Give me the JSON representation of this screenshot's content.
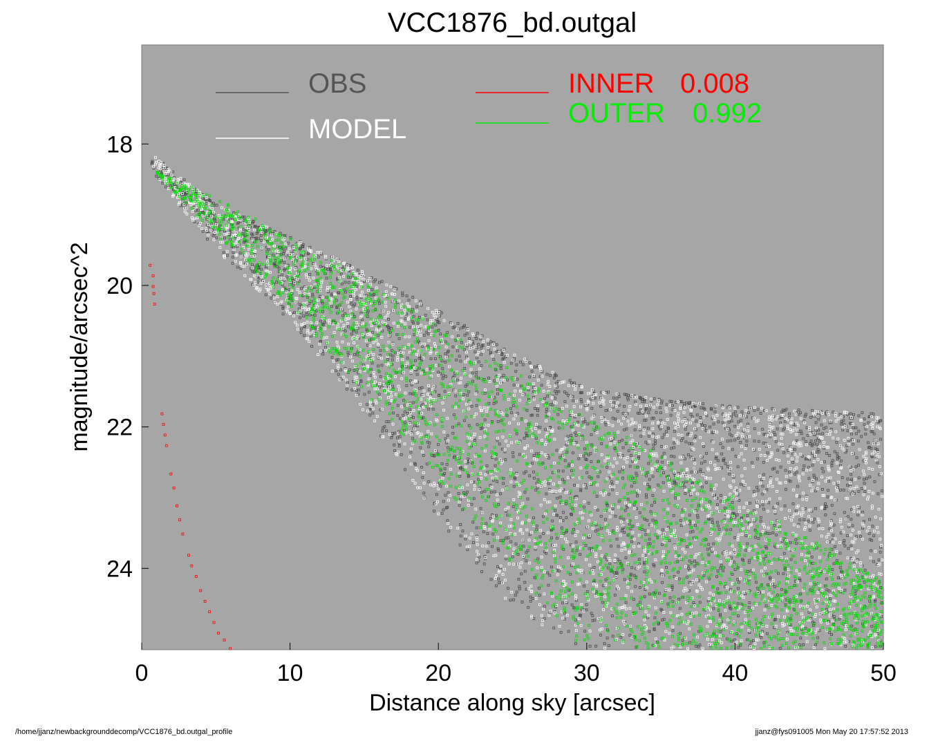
{
  "chart_data": {
    "type": "scatter",
    "title": "VCC1876_bd.outgal",
    "xlabel": "Distance along sky [arcsec]",
    "ylabel": "magnitude/arcsec^2",
    "xlim": [
      0,
      50
    ],
    "ylim": [
      25.15,
      16.6
    ],
    "y_inverted": true,
    "xticks": [
      0,
      10,
      20,
      30,
      40,
      50
    ],
    "yticks": [
      18,
      20,
      22,
      24
    ],
    "plot_background": "#a6a6a6",
    "grid": false,
    "legend": [
      {
        "name": "OBS",
        "color": "#555555"
      },
      {
        "name": "MODEL",
        "color": "#ffffff"
      },
      {
        "name": "INNER",
        "value": "0.008",
        "color": "#ff0000"
      },
      {
        "name": "OUTER",
        "value": "0.992",
        "color": "#00ee00"
      }
    ],
    "series": [
      {
        "name": "OBS",
        "color": "#555555",
        "note_points": "dense scatter",
        "upper_envelope": [
          [
            0.7,
            18.15
          ],
          [
            5,
            18.85
          ],
          [
            10,
            19.3
          ],
          [
            15,
            19.8
          ],
          [
            20,
            20.35
          ],
          [
            25,
            20.95
          ],
          [
            30,
            21.45
          ],
          [
            35,
            21.6
          ],
          [
            40,
            21.7
          ],
          [
            45,
            21.75
          ],
          [
            50,
            21.8
          ]
        ],
        "lower_envelope": [
          [
            0.7,
            18.4
          ],
          [
            5,
            19.5
          ],
          [
            10,
            20.5
          ],
          [
            15,
            21.8
          ],
          [
            20,
            23.3
          ],
          [
            25,
            24.6
          ],
          [
            30,
            25.15
          ],
          [
            40,
            25.15
          ],
          [
            50,
            25.15
          ]
        ]
      },
      {
        "name": "OUTER",
        "color": "#00ee00",
        "upper_curve": [
          [
            0.7,
            18.35
          ],
          [
            5,
            18.75
          ],
          [
            10,
            19.3
          ],
          [
            15,
            19.9
          ],
          [
            20,
            20.55
          ],
          [
            25,
            21.2
          ],
          [
            30,
            21.8
          ],
          [
            35,
            22.4
          ],
          [
            40,
            23.0
          ],
          [
            45,
            23.55
          ],
          [
            50,
            24.15
          ]
        ],
        "lower_curve": [
          [
            0.7,
            18.35
          ],
          [
            5,
            19.3
          ],
          [
            10,
            20.3
          ],
          [
            15,
            21.5
          ],
          [
            20,
            22.75
          ],
          [
            25,
            24.0
          ],
          [
            29.8,
            25.15
          ]
        ]
      },
      {
        "name": "INNER",
        "color": "#ff0000",
        "points": [
          [
            0.5,
            19.7
          ],
          [
            0.7,
            19.85
          ],
          [
            0.7,
            20.0
          ],
          [
            0.75,
            20.1
          ],
          [
            0.8,
            20.25
          ],
          [
            1.3,
            21.8
          ],
          [
            1.4,
            21.95
          ],
          [
            1.5,
            22.1
          ],
          [
            1.6,
            22.25
          ],
          [
            1.9,
            22.65
          ],
          [
            2.1,
            22.85
          ],
          [
            2.3,
            23.1
          ],
          [
            2.5,
            23.3
          ],
          [
            2.7,
            23.5
          ],
          [
            3.1,
            23.8
          ],
          [
            3.3,
            23.95
          ],
          [
            3.6,
            24.1
          ],
          [
            3.9,
            24.3
          ],
          [
            4.2,
            24.45
          ],
          [
            4.5,
            24.6
          ],
          [
            4.8,
            24.75
          ],
          [
            5.1,
            24.9
          ],
          [
            5.5,
            25.0
          ],
          [
            5.9,
            25.12
          ]
        ]
      }
    ]
  },
  "footer": {
    "left": "/home/jjanz/newbackgrounddecomp/VCC1876_bd.outgal_profile",
    "right": "jjanz@fys091005  Mon May 20 17:57:52 2013"
  }
}
